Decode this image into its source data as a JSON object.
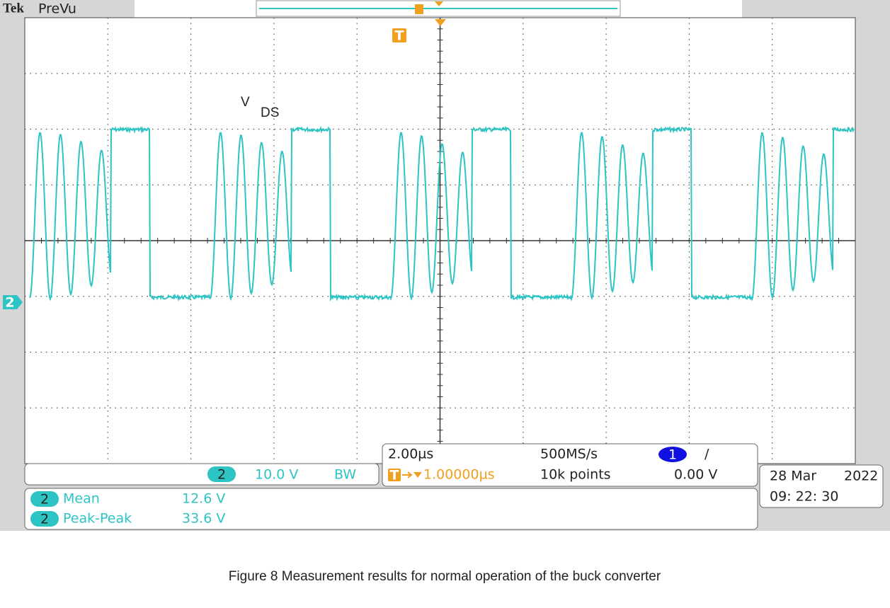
{
  "header": {
    "brand": "Tek",
    "mode": "PreVu"
  },
  "trigger_marker": "T",
  "trace_label": {
    "main": "V",
    "sub": "DS"
  },
  "channel_marker": "2",
  "channel_box": {
    "channel": "2",
    "scale": "10.0 V",
    "bandwidth": "BW"
  },
  "timebase": {
    "scale": "2.00µs",
    "sample_rate": "500MS/s",
    "trigger_channel": "1",
    "slope": "/",
    "trigger_marker": "T",
    "delay": "1.00000µs",
    "record": "10k points",
    "level": "0.00 V"
  },
  "date": {
    "day": "28 Mar",
    "year": "2022",
    "time": "09: 22: 30"
  },
  "measurements": [
    {
      "channel": "2",
      "name": "Mean",
      "value": "12.6 V"
    },
    {
      "channel": "2",
      "name": "Peak-Peak",
      "value": "33.6 V"
    }
  ],
  "caption": "Figure 8 Measurement results for normal operation of the buck converter"
}
